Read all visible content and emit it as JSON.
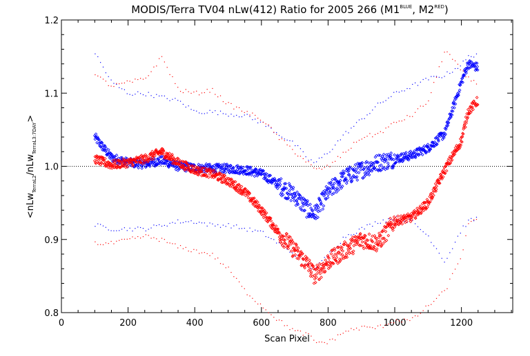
{
  "chart_data": {
    "type": "scatter",
    "title": "MODIS/Terra TV04 nLw(412) Ratio for 2005 266 (M1",
    "title_sup1": "BLUE",
    "title_mid": ", M2",
    "title_sup2": "RED",
    "title_end": ")",
    "xlabel": "Scan Pixel",
    "ylabel_parts": {
      "open": "<nLw",
      "sub1": "TerraL2",
      "mid": "/nLw",
      "sub2": "TerraL3:7DAY",
      "close": ">"
    },
    "xlim": [
      0,
      1354
    ],
    "ylim": [
      0.8,
      1.2
    ],
    "xticks": [
      0,
      200,
      400,
      600,
      800,
      1000,
      1200
    ],
    "xtick_labels": [
      "0",
      "200",
      "400",
      "600",
      "800",
      "1000",
      "1200"
    ],
    "yticks": [
      0.8,
      0.9,
      1.0,
      1.1,
      1.2
    ],
    "ytick_labels": [
      "0.8",
      "0.9",
      "1.0",
      "1.1",
      "1.2"
    ],
    "reference_line": 1.0,
    "grid": false,
    "colors": {
      "M1": "#0000ff",
      "M2": "#ff0000"
    },
    "series": [
      {
        "key": "M1",
        "color": "#0000ff",
        "x": [
          100,
          150,
          200,
          250,
          300,
          350,
          400,
          450,
          500,
          550,
          600,
          650,
          700,
          740,
          760,
          800,
          850,
          900,
          950,
          1000,
          1050,
          1100,
          1150,
          1200,
          1220,
          1250
        ],
        "y": [
          1.04,
          1.012,
          1.005,
          1.003,
          1.008,
          1.0,
          0.998,
          0.997,
          0.997,
          0.995,
          0.99,
          0.975,
          0.96,
          0.94,
          0.935,
          0.965,
          0.985,
          0.995,
          1.005,
          1.01,
          1.015,
          1.025,
          1.045,
          1.115,
          1.14,
          1.135
        ],
        "upper": [
          1.155,
          1.115,
          1.1,
          1.1,
          1.095,
          1.09,
          1.075,
          1.075,
          1.072,
          1.07,
          1.06,
          1.045,
          1.03,
          1.01,
          1.005,
          1.02,
          1.045,
          1.065,
          1.085,
          1.1,
          1.11,
          1.12,
          1.125,
          1.14,
          1.15,
          1.155
        ],
        "lower": [
          0.92,
          0.915,
          0.915,
          0.915,
          0.92,
          0.925,
          0.925,
          0.92,
          0.92,
          0.915,
          0.91,
          0.895,
          0.88,
          0.865,
          0.86,
          0.88,
          0.905,
          0.915,
          0.925,
          0.93,
          0.925,
          0.905,
          0.87,
          0.915,
          0.925,
          0.93
        ]
      },
      {
        "key": "M2",
        "color": "#ff0000",
        "x": [
          100,
          150,
          200,
          250,
          300,
          350,
          400,
          450,
          500,
          550,
          600,
          650,
          700,
          740,
          760,
          800,
          850,
          900,
          950,
          1000,
          1050,
          1100,
          1150,
          1200,
          1220,
          1250
        ],
        "y": [
          1.01,
          1.002,
          1.005,
          1.01,
          1.02,
          1.005,
          0.995,
          0.99,
          0.98,
          0.965,
          0.94,
          0.91,
          0.885,
          0.865,
          0.85,
          0.87,
          0.885,
          0.9,
          0.895,
          0.925,
          0.93,
          0.95,
          0.995,
          1.035,
          1.075,
          1.09
        ],
        "upper": [
          1.125,
          1.11,
          1.115,
          1.12,
          1.15,
          1.105,
          1.1,
          1.105,
          1.085,
          1.075,
          1.065,
          1.04,
          1.02,
          1.005,
          0.995,
          1.0,
          1.02,
          1.04,
          1.045,
          1.06,
          1.07,
          1.09,
          1.16,
          1.13,
          1.12,
          1.115
        ],
        "lower": [
          0.895,
          0.895,
          0.9,
          0.905,
          0.9,
          0.89,
          0.885,
          0.88,
          0.86,
          0.83,
          0.81,
          0.79,
          0.775,
          0.77,
          0.76,
          0.76,
          0.775,
          0.78,
          0.78,
          0.79,
          0.79,
          0.81,
          0.83,
          0.88,
          0.92,
          0.93
        ]
      }
    ]
  }
}
